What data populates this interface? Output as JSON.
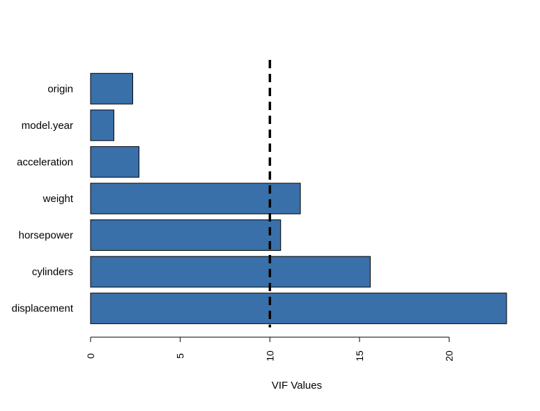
{
  "chart_data": {
    "type": "bar",
    "orientation": "horizontal",
    "categories": [
      "displacement",
      "cylinders",
      "horsepower",
      "weight",
      "acceleration",
      "model.year",
      "origin"
    ],
    "values": [
      23.2,
      15.6,
      10.6,
      11.7,
      2.7,
      1.3,
      2.35
    ],
    "title": "",
    "xlabel": "VIF Values",
    "ylabel": "",
    "xlim": [
      0,
      23.2
    ],
    "xticks": [
      0,
      5,
      10,
      15,
      20
    ],
    "reference_line": {
      "x": 10,
      "style": "dashed",
      "color": "#000000"
    },
    "bar_color": "#3A70AA",
    "bar_edge_color": "#000000",
    "grid": false,
    "legend": "none"
  }
}
